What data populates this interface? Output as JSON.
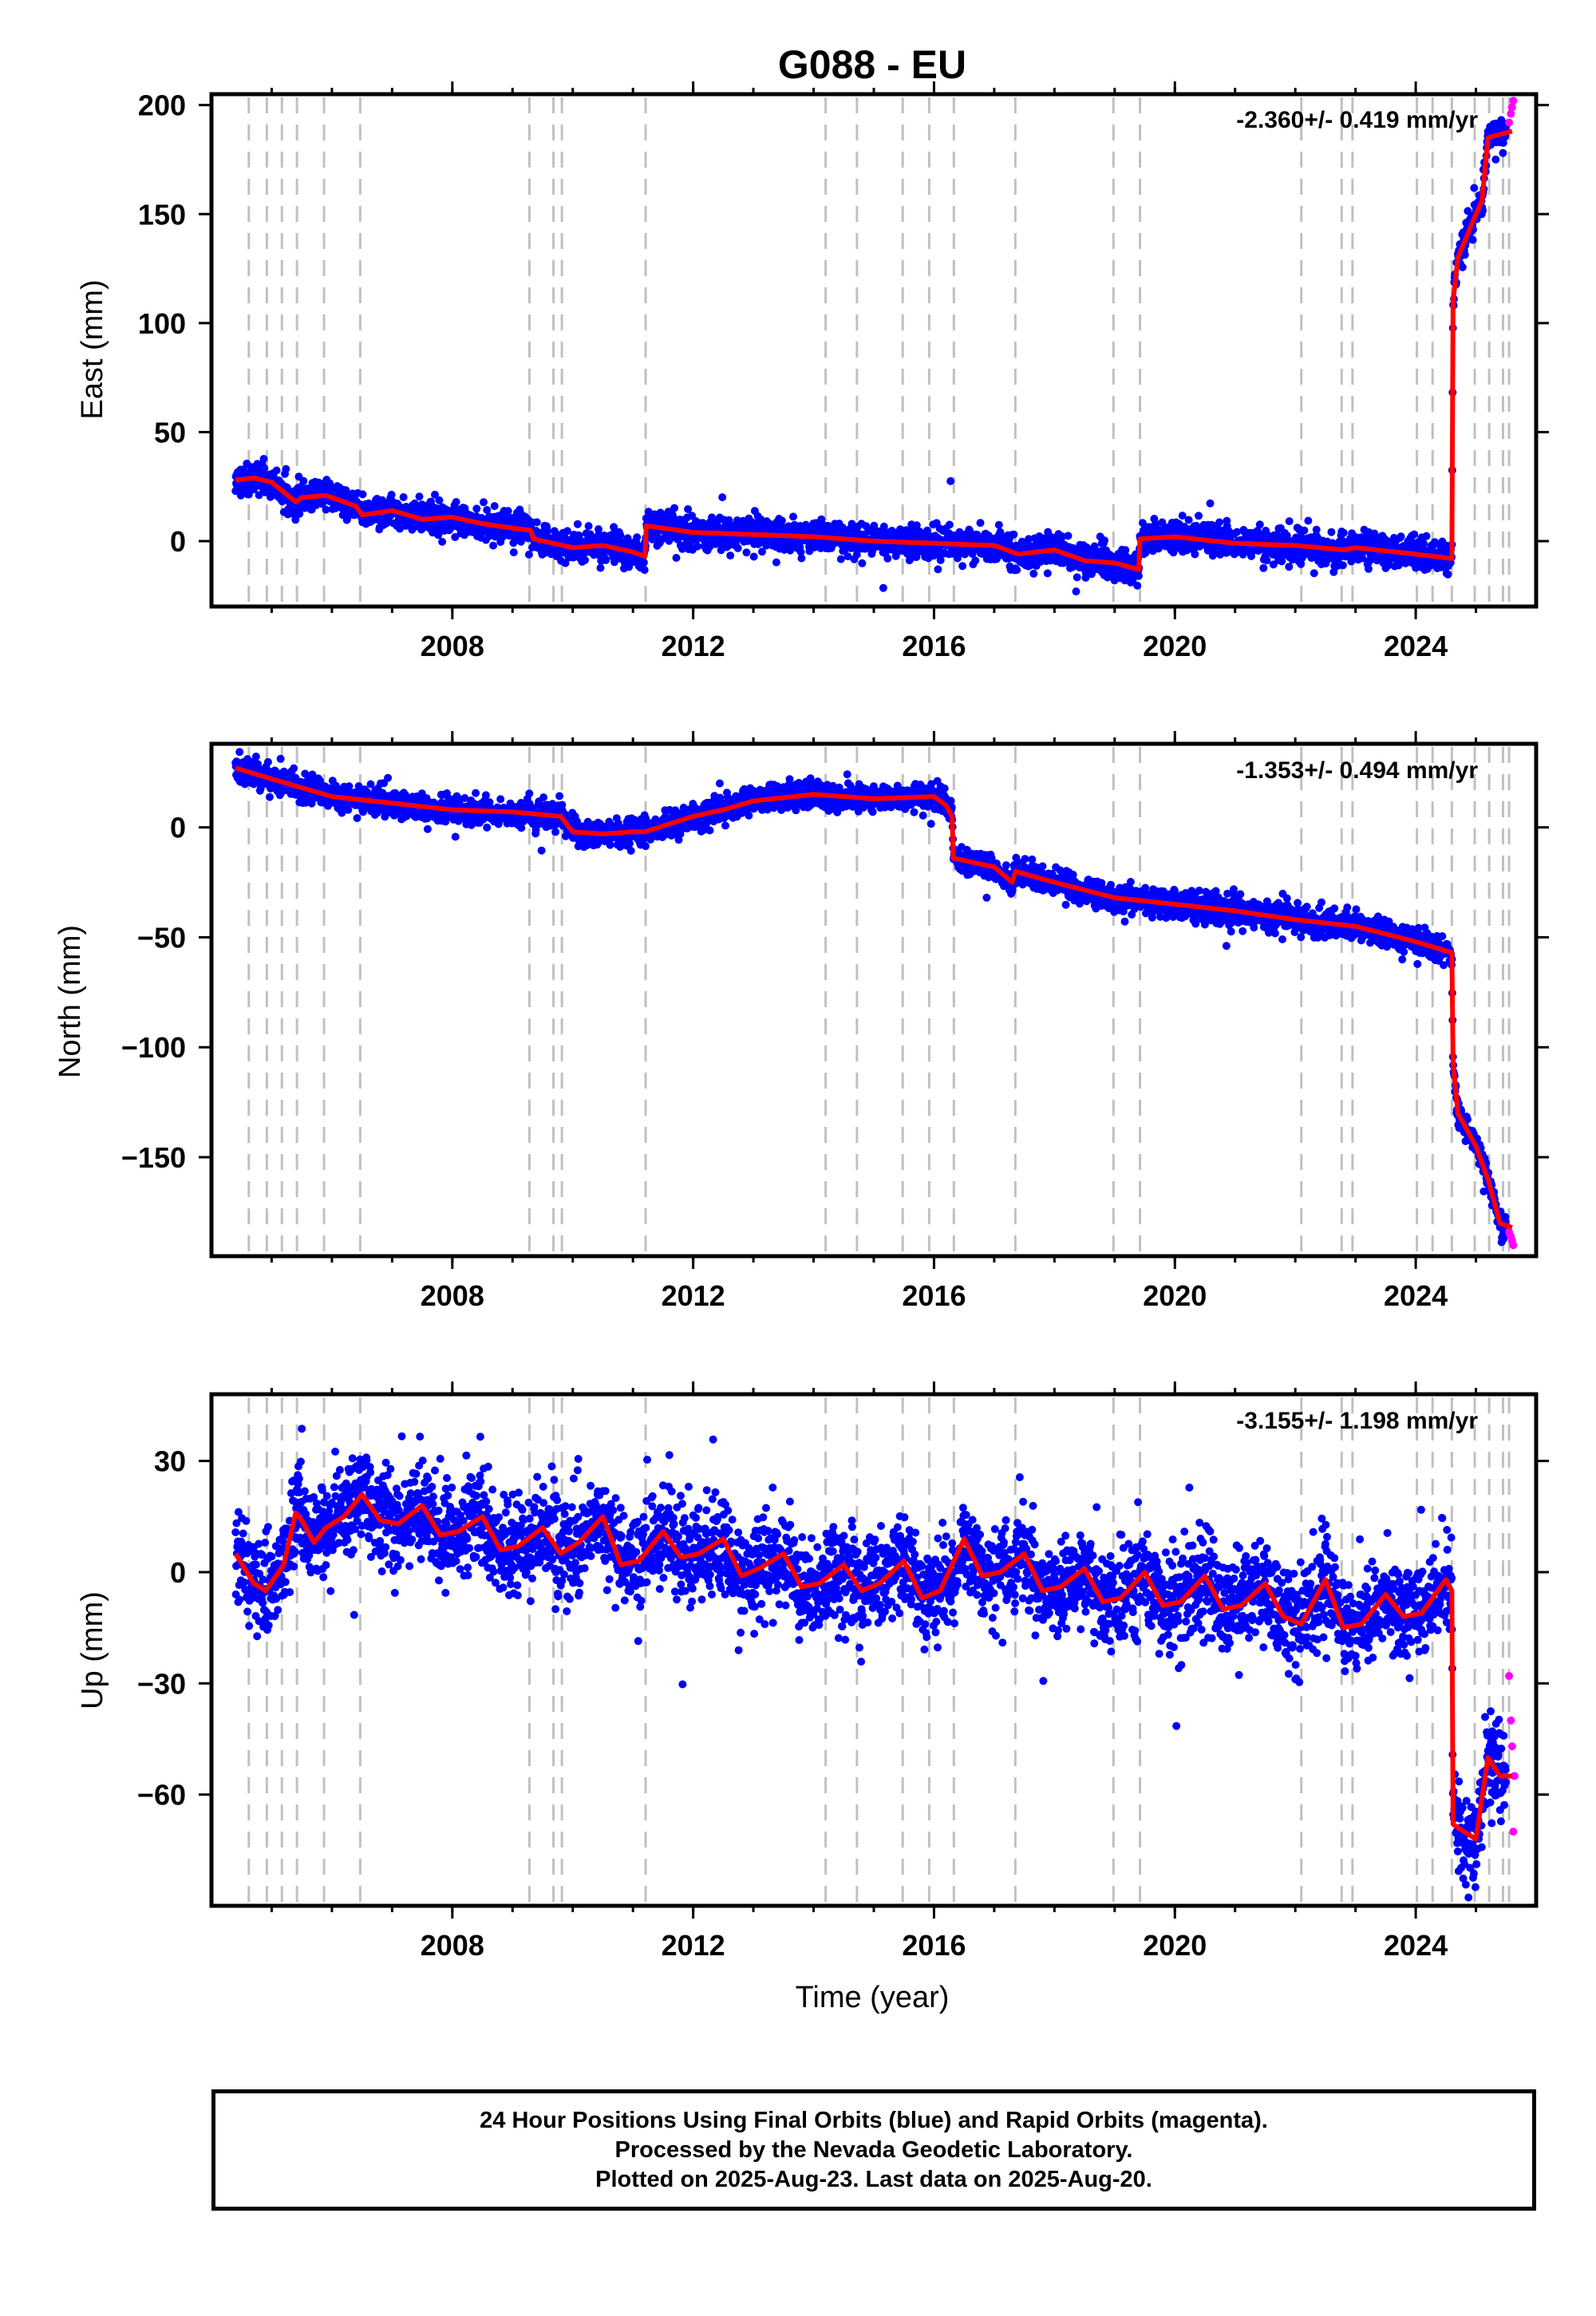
{
  "title": "G088 - EU",
  "xlabel": "Time (year)",
  "colors": {
    "final_orbits": "#0000ff",
    "rapid_orbits": "#ff00ff",
    "model": "#ff0000",
    "event_lines": "#c0c0c0",
    "frame": "#000000"
  },
  "footer": {
    "line1": "24 Hour Positions Using Final Orbits (blue) and Rapid Orbits (magenta).",
    "line2": "Processed by the Nevada Geodetic Laboratory.",
    "line3": "Plotted on 2025-Aug-23. Last data on 2025-Aug-20."
  },
  "chart_data": [
    {
      "type": "scatter",
      "name": "East",
      "ylabel": "East (mm)",
      "rate_label": "-2.360+/- 0.419 mm/yr",
      "xlim": [
        2004.0,
        2026.0
      ],
      "ylim": [
        -30,
        205
      ],
      "xticks": [
        2008,
        2012,
        2016,
        2020,
        2024
      ],
      "xtick_labels": [
        "2008",
        "2012",
        "2016",
        "2020",
        "2024"
      ],
      "yticks": [
        0,
        50,
        100,
        150,
        200
      ],
      "ytick_labels": [
        "0",
        "50",
        "100",
        "150",
        "200"
      ],
      "scatter_spread": 3.5,
      "series": [
        {
          "name": "model",
          "x": [
            2004.4,
            2004.7,
            2005.0,
            2005.4,
            2005.5,
            2005.9,
            2006.4,
            2006.5,
            2007.0,
            2007.5,
            2008.0,
            2008.5,
            2009.0,
            2009.3,
            2009.35,
            2010.0,
            2010.5,
            2011.0,
            2011.2,
            2011.22,
            2012.0,
            2013.0,
            2014.0,
            2015.0,
            2016.0,
            2017.0,
            2017.4,
            2018.0,
            2018.5,
            2019.0,
            2019.4,
            2019.42,
            2020.0,
            2021.0,
            2022.0,
            2022.8,
            2023.0,
            2024.0,
            2024.6,
            2024.62,
            2024.7,
            2025.0,
            2025.1,
            2025.2,
            2025.6
          ],
          "y": [
            28,
            29,
            27,
            18,
            20,
            21,
            16,
            12,
            14,
            10,
            11,
            8,
            6,
            5,
            1,
            -3,
            -2,
            -5,
            -7,
            7,
            4,
            3,
            2,
            0,
            -1,
            -2,
            -6,
            -4,
            -9,
            -10,
            -13,
            1,
            2,
            -1,
            -2,
            -4,
            -3,
            -6,
            -8,
            110,
            130,
            150,
            156,
            185,
            188
          ]
        },
        {
          "name": "rapid",
          "x": [
            2025.55,
            2025.58,
            2025.6,
            2025.62
          ],
          "y": [
            192,
            196,
            199,
            202
          ]
        }
      ]
    },
    {
      "type": "scatter",
      "name": "North",
      "ylabel": "North (mm)",
      "rate_label": "-1.353+/- 0.494 mm/yr",
      "xlim": [
        2004.0,
        2026.0
      ],
      "ylim": [
        -195,
        38
      ],
      "xticks": [
        2008,
        2012,
        2016,
        2020,
        2024
      ],
      "xtick_labels": [
        "2008",
        "2012",
        "2016",
        "2020",
        "2024"
      ],
      "yticks": [
        -150,
        -100,
        -50,
        0
      ],
      "ytick_labels": [
        "−150",
        "−100",
        "−50",
        "0"
      ],
      "scatter_spread": 3.0,
      "series": [
        {
          "name": "model",
          "x": [
            2004.4,
            2005.0,
            2006.0,
            2007.0,
            2008.0,
            2009.0,
            2009.8,
            2010.0,
            2010.5,
            2011.0,
            2011.2,
            2012.0,
            2012.5,
            2013.0,
            2014.0,
            2015.0,
            2016.0,
            2016.2,
            2016.3,
            2016.32,
            2017.0,
            2017.3,
            2017.35,
            2018.0,
            2019.0,
            2020.0,
            2021.0,
            2022.0,
            2023.0,
            2024.0,
            2024.6,
            2024.62,
            2024.7,
            2025.0,
            2025.2,
            2025.4,
            2025.6
          ],
          "y": [
            27,
            22,
            14,
            11,
            8,
            7,
            5,
            -2,
            -3,
            -2,
            -2,
            5,
            8,
            12,
            15,
            13,
            14,
            10,
            5,
            -14,
            -18,
            -25,
            -20,
            -25,
            -32,
            -35,
            -38,
            -42,
            -45,
            -52,
            -57,
            -107,
            -130,
            -145,
            -160,
            -180,
            -182
          ]
        },
        {
          "name": "rapid",
          "x": [
            2025.55,
            2025.58,
            2025.6,
            2025.62
          ],
          "y": [
            -184,
            -186,
            -188,
            -190
          ]
        }
      ]
    },
    {
      "type": "scatter",
      "name": "Up",
      "ylabel": "Up (mm)",
      "rate_label": "-3.155+/- 1.198 mm/yr",
      "xlim": [
        2004.0,
        2026.0
      ],
      "ylim": [
        -90,
        48
      ],
      "xticks": [
        2008,
        2012,
        2016,
        2020,
        2024
      ],
      "xtick_labels": [
        "2008",
        "2012",
        "2016",
        "2020",
        "2024"
      ],
      "yticks": [
        -60,
        -30,
        0,
        30
      ],
      "ytick_labels": [
        "−60",
        "−30",
        "0",
        "30"
      ],
      "scatter_spread": 6.5,
      "series": [
        {
          "name": "model",
          "x": [
            2004.4,
            2004.7,
            2004.9,
            2005.2,
            2005.4,
            2005.5,
            2005.7,
            2005.9,
            2006.2,
            2006.5,
            2006.8,
            2007.1,
            2007.5,
            2007.8,
            2008.1,
            2008.5,
            2008.8,
            2009.1,
            2009.5,
            2009.8,
            2010.1,
            2010.5,
            2010.8,
            2011.1,
            2011.5,
            2011.8,
            2012.1,
            2012.5,
            2012.8,
            2013.1,
            2013.5,
            2013.8,
            2014.1,
            2014.5,
            2014.8,
            2015.1,
            2015.5,
            2015.8,
            2016.1,
            2016.5,
            2016.8,
            2017.1,
            2017.5,
            2017.8,
            2018.1,
            2018.5,
            2018.8,
            2019.1,
            2019.5,
            2019.8,
            2020.1,
            2020.5,
            2020.8,
            2021.1,
            2021.5,
            2021.8,
            2022.1,
            2022.5,
            2022.8,
            2023.1,
            2023.5,
            2023.8,
            2024.1,
            2024.5,
            2024.6,
            2024.62,
            2024.8,
            2025.0,
            2025.2,
            2025.4,
            2025.6
          ],
          "y": [
            5,
            -3,
            -5,
            2,
            16,
            14,
            8,
            12,
            15,
            21,
            14,
            13,
            18,
            10,
            11,
            15,
            6,
            7,
            12,
            5,
            8,
            15,
            2,
            3,
            11,
            4,
            5,
            9,
            -1,
            1,
            5,
            -4,
            -3,
            2,
            -5,
            -3,
            3,
            -7,
            -5,
            9,
            -1,
            0,
            5,
            -5,
            -4,
            1,
            -8,
            -7,
            0,
            -9,
            -8,
            -1,
            -10,
            -9,
            -3,
            -12,
            -14,
            -2,
            -15,
            -14,
            -6,
            -12,
            -11,
            -2,
            -5,
            -68,
            -70,
            -72,
            -50,
            -55,
            -55
          ]
        },
        {
          "name": "rapid",
          "x": [
            2025.55,
            2025.58,
            2025.6,
            2025.62,
            2025.64
          ],
          "y": [
            -28,
            -40,
            -47,
            -70,
            -55
          ]
        }
      ]
    }
  ],
  "event_years": [
    2004.62,
    2004.92,
    2005.17,
    2005.42,
    2005.87,
    2006.47,
    2009.28,
    2009.68,
    2009.82,
    2011.21,
    2014.2,
    2014.72,
    2015.48,
    2015.92,
    2016.33,
    2017.35,
    2018.98,
    2019.42,
    2022.1,
    2022.77,
    2022.95,
    2024.02,
    2024.28,
    2024.6,
    2024.98,
    2025.22,
    2025.45,
    2025.55
  ]
}
